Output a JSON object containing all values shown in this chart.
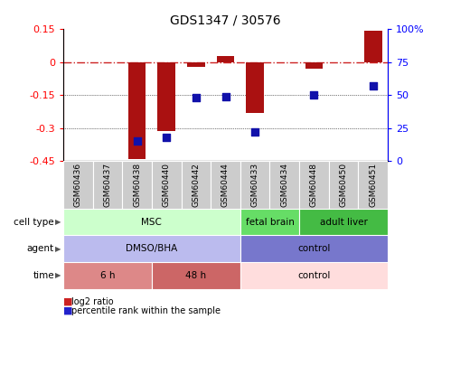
{
  "title": "GDS1347 / 30576",
  "samples": [
    "GSM60436",
    "GSM60437",
    "GSM60438",
    "GSM60440",
    "GSM60442",
    "GSM60444",
    "GSM60433",
    "GSM60434",
    "GSM60448",
    "GSM60450",
    "GSM60451"
  ],
  "log2_ratio": [
    0.0,
    0.0,
    -0.44,
    -0.315,
    -0.02,
    0.03,
    -0.23,
    0.0,
    -0.03,
    0.0,
    0.145
  ],
  "percentile_rank": [
    null,
    null,
    15,
    18,
    48,
    49,
    22,
    null,
    50,
    null,
    57
  ],
  "ylim_left": [
    -0.45,
    0.15
  ],
  "ylim_right": [
    0,
    100
  ],
  "yticks_left": [
    0.15,
    0.0,
    -0.15,
    -0.3,
    -0.45
  ],
  "yticks_right_vals": [
    100,
    75,
    50,
    25,
    0
  ],
  "yticks_right_labels": [
    "100%",
    "75",
    "50",
    "25",
    "0"
  ],
  "yticks_left_labels": [
    "0.15",
    "0",
    "-0.15",
    "-0.3",
    "-0.45"
  ],
  "cell_type_groups": [
    {
      "label": "MSC",
      "start": 0,
      "end": 5,
      "color": "#ccffcc"
    },
    {
      "label": "fetal brain",
      "start": 6,
      "end": 7,
      "color": "#66dd66"
    },
    {
      "label": "adult liver",
      "start": 8,
      "end": 10,
      "color": "#44bb44"
    }
  ],
  "agent_groups": [
    {
      "label": "DMSO/BHA",
      "start": 0,
      "end": 5,
      "color": "#bbbbee"
    },
    {
      "label": "control",
      "start": 6,
      "end": 10,
      "color": "#7777cc"
    }
  ],
  "time_groups": [
    {
      "label": "6 h",
      "start": 0,
      "end": 2,
      "color": "#dd8888"
    },
    {
      "label": "48 h",
      "start": 3,
      "end": 5,
      "color": "#cc6666"
    },
    {
      "label": "control",
      "start": 6,
      "end": 10,
      "color": "#ffdddd"
    }
  ],
  "row_labels": [
    "cell type",
    "agent",
    "time"
  ],
  "bar_color": "#aa1111",
  "dot_color": "#1111aa",
  "ref_line_color": "#cc2222",
  "dot_size": 40,
  "bar_width": 0.6,
  "sample_box_color": "#cccccc",
  "legend_bar_color": "#cc2222",
  "legend_dot_color": "#2222cc"
}
